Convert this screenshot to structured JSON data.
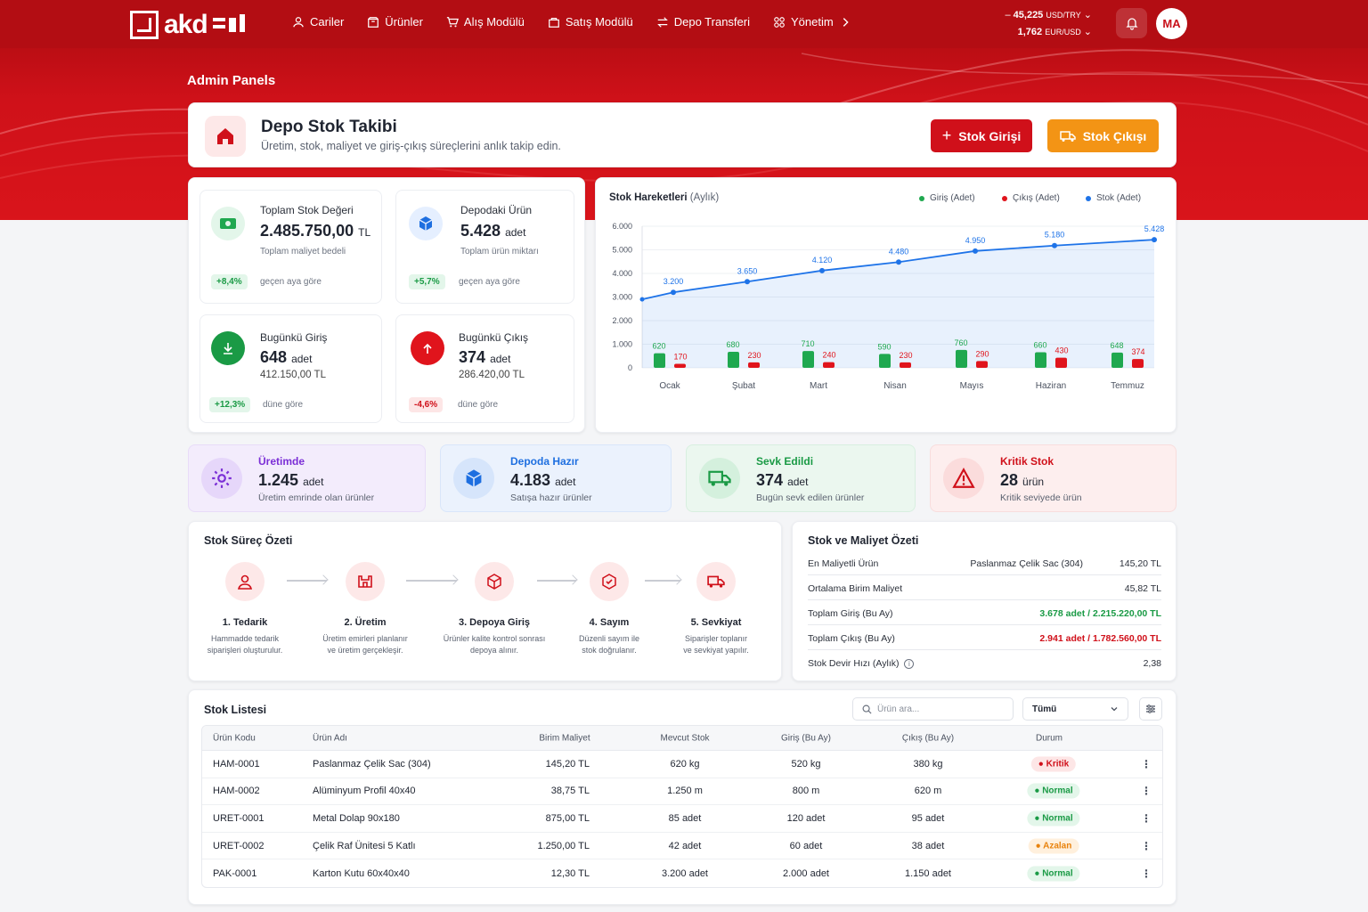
{
  "brand": {
    "logo_text": "akd"
  },
  "nav": [
    {
      "label": "Cariler",
      "icon": "users-icon"
    },
    {
      "label": "Ürünler",
      "icon": "box-icon"
    },
    {
      "label": "Alış Modülü",
      "icon": "cart-icon"
    },
    {
      "label": "Satış Modülü",
      "icon": "bag-icon"
    },
    {
      "label": "Depo Transferi",
      "icon": "transfer-icon"
    },
    {
      "label": "Yönetim",
      "icon": "grid-icon"
    }
  ],
  "rates": {
    "usd_try": "45,225",
    "usd_try_unit": "USD/TRY",
    "eur_usd": "1,762",
    "eur_usd_unit": "EUR/USD"
  },
  "user": {
    "initials": "MA"
  },
  "page": {
    "admin_title": "Admin Panels",
    "title": "Depo Stok Takibi",
    "subtitle": "Üretim, stok, maliyet ve giriş-çıkış süreçlerini anlık takip edin.",
    "btn_in": "Stok Girişi",
    "btn_out": "Stok Çıkışı"
  },
  "stats": {
    "total_value": {
      "label": "Toplam Stok Değeri",
      "value": "2.485.750,00",
      "unit": "TL",
      "sub": "Toplam maliyet bedeli",
      "change": "+8,4%",
      "note": "geçen aya göre"
    },
    "products": {
      "label": "Depodaki Ürün",
      "value": "5.428",
      "unit": "adet",
      "sub": "Toplam ürün miktarı",
      "change": "+5,7%",
      "note": "geçen aya göre"
    },
    "today_in": {
      "label": "Bugünkü Giriş",
      "value": "648",
      "unit": "adet",
      "sub": "412.150,00 TL",
      "change": "+12,3%",
      "note": "düne göre"
    },
    "today_out": {
      "label": "Bugünkü Çıkış",
      "value": "374",
      "unit": "adet",
      "sub": "286.420,00 TL",
      "change": "-4,6%",
      "note": "düne göre"
    }
  },
  "chart_data": {
    "type": "bar",
    "title": "Stok Hareketleri",
    "title_suffix": "(Aylık)",
    "categories": [
      "Ocak",
      "Şubat",
      "Mart",
      "Nisan",
      "Mayıs",
      "Haziran",
      "Temmuz"
    ],
    "series": [
      {
        "name": "Giriş (Adet)",
        "type": "bar",
        "color": "#1fa84f",
        "values": [
          620,
          680,
          710,
          590,
          760,
          660,
          648
        ]
      },
      {
        "name": "Çıkış (Adet)",
        "type": "bar",
        "color": "#e0141c",
        "values": [
          170,
          230,
          240,
          230,
          290,
          430,
          374
        ]
      },
      {
        "name": "Stok (Adet)",
        "type": "line",
        "color": "#1e73e8",
        "values": [
          3200,
          3650,
          4120,
          4480,
          4950,
          5180,
          5428
        ],
        "labels": [
          "3.200",
          "3.650",
          "4.120",
          "4.480",
          "4.950",
          "5.180",
          "5.428"
        ]
      }
    ],
    "ylim": [
      0,
      6000
    ],
    "yticks": [
      "0",
      "1.000",
      "2.000",
      "3.000",
      "4.000",
      "5.000",
      "6.000"
    ],
    "bar_labels_in": [
      "620",
      "680",
      "710",
      "590",
      "760",
      "660",
      "648"
    ],
    "bar_labels_out": [
      "170",
      "230",
      "240",
      "230",
      "290",
      "430",
      "374"
    ],
    "grid": true,
    "legend": "top-right"
  },
  "status": [
    {
      "title": "Üretimde",
      "value": "1.245",
      "unit": "adet",
      "sub": "Üretim emrinde olan ürünler",
      "icon": "gear-icon",
      "color": "#7b2fd6"
    },
    {
      "title": "Depoda Hazır",
      "value": "4.183",
      "unit": "adet",
      "sub": "Satışa hazır ürünler",
      "icon": "box-icon",
      "color": "#1e6fe0"
    },
    {
      "title": "Sevk Edildi",
      "value": "374",
      "unit": "adet",
      "sub": "Bugün sevk edilen ürünler",
      "icon": "truck-icon",
      "color": "#1a9a45"
    },
    {
      "title": "Kritik Stok",
      "value": "28",
      "unit": "ürün",
      "sub": "Kritik seviyede ürün",
      "icon": "warning-icon",
      "color": "#d0101a"
    }
  ],
  "process": {
    "title": "Stok Süreç Özeti",
    "steps": [
      {
        "title": "1. Tedarik",
        "desc1": "Hammadde tedarik",
        "desc2": "siparişleri oluşturulur."
      },
      {
        "title": "2. Üretim",
        "desc1": "Üretim emirleri planlanır",
        "desc2": "ve üretim gerçekleşir."
      },
      {
        "title": "3. Depoya Giriş",
        "desc1": "Ürünler kalite kontrol sonrası",
        "desc2": "depoya alınır."
      },
      {
        "title": "4. Sayım",
        "desc1": "Düzenli sayım ile",
        "desc2": "stok doğrulanır."
      },
      {
        "title": "5. Sevkiyat",
        "desc1": "Siparişler toplanır",
        "desc2": "ve sevkiyat yapılır."
      }
    ]
  },
  "cost": {
    "title": "Stok ve Maliyet Özeti",
    "rows": [
      {
        "label": "En Maliyetli Ürün",
        "mid": "Paslanmaz Çelik Sac (304)",
        "value": "145,20 TL"
      },
      {
        "label": "Ortalama Birim Maliyet",
        "mid": "",
        "value": "45,82 TL"
      },
      {
        "label": "Toplam Giriş (Bu Ay)",
        "mid": "",
        "value": "3.678 adet / 2.215.220,00 TL"
      },
      {
        "label": "Toplam Çıkış (Bu Ay)",
        "mid": "",
        "value": "2.941 adet / 1.782.560,00 TL"
      },
      {
        "label": "Stok Devir Hızı (Aylık)",
        "mid": "",
        "value": "2,38"
      }
    ]
  },
  "table": {
    "title": "Stok Listesi",
    "search_placeholder": "Ürün ara...",
    "filter_value": "Tümü",
    "headers": [
      "Ürün Kodu",
      "Ürün Adı",
      "Birim Maliyet",
      "Mevcut Stok",
      "Giriş (Bu Ay)",
      "Çıkış (Bu Ay)",
      "Durum"
    ],
    "rows": [
      {
        "code": "HAM-0001",
        "name": "Paslanmaz Çelik Sac (304)",
        "cost": "145,20 TL",
        "stock": "620 kg",
        "in": "520 kg",
        "out": "380 kg",
        "status": "Kritik"
      },
      {
        "code": "HAM-0002",
        "name": "Alüminyum Profil 40x40",
        "cost": "38,75 TL",
        "stock": "1.250 m",
        "in": "800 m",
        "out": "620 m",
        "status": "Normal"
      },
      {
        "code": "URET-0001",
        "name": "Metal Dolap 90x180",
        "cost": "875,00 TL",
        "stock": "85 adet",
        "in": "120 adet",
        "out": "95 adet",
        "status": "Normal"
      },
      {
        "code": "URET-0002",
        "name": "Çelik Raf Ünitesi 5 Katlı",
        "cost": "1.250,00 TL",
        "stock": "42 adet",
        "in": "60 adet",
        "out": "38 adet",
        "status": "Azalan"
      },
      {
        "code": "PAK-0001",
        "name": "Karton Kutu 60x40x40",
        "cost": "12,30 TL",
        "stock": "3.200 adet",
        "in": "2.000 adet",
        "out": "1.150 adet",
        "status": "Normal"
      }
    ]
  }
}
